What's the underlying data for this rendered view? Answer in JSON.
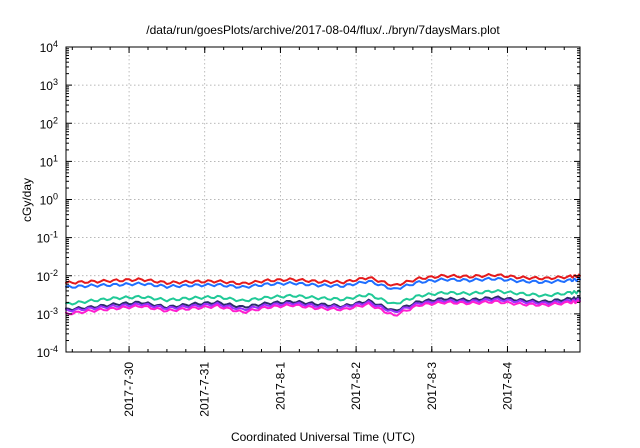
{
  "chart_data": {
    "type": "line",
    "title": "/data/run/goesPlots/archive/2017-08-04/flux/../bryn/7daysMars.plot",
    "xlabel": "Coordinated Universal Time (UTC)",
    "ylabel": "cGy/day",
    "yscale": "log",
    "ylim": [
      0.0001,
      10000
    ],
    "xlim": [
      "2017-07-29T04:00",
      "2017-08-04T23:00"
    ],
    "grid": true,
    "legend": "none",
    "x_ticks": [
      {
        "value": "2017-07-30",
        "label": "2017-7-30"
      },
      {
        "value": "2017-07-31",
        "label": "2017-7-31"
      },
      {
        "value": "2017-08-01",
        "label": "2017-8-1"
      },
      {
        "value": "2017-08-02",
        "label": "2017-8-2"
      },
      {
        "value": "2017-08-03",
        "label": "2017-8-3"
      },
      {
        "value": "2017-08-04",
        "label": "2017-8-4"
      }
    ],
    "y_ticks": [
      {
        "value": 0.0001,
        "base": "10",
        "exp": "-4"
      },
      {
        "value": 0.001,
        "base": "10",
        "exp": "-3"
      },
      {
        "value": 0.01,
        "base": "10",
        "exp": "-2"
      },
      {
        "value": 0.1,
        "base": "10",
        "exp": "-1"
      },
      {
        "value": 1,
        "base": "10",
        "exp": "0"
      },
      {
        "value": 10,
        "base": "10",
        "exp": "1"
      },
      {
        "value": 100,
        "base": "10",
        "exp": "2"
      },
      {
        "value": 1000,
        "base": "10",
        "exp": "3"
      },
      {
        "value": 10000,
        "base": "10",
        "exp": "4"
      }
    ],
    "x": [
      "2017-07-29T04:00",
      "2017-07-29T12:00",
      "2017-07-29T20:00",
      "2017-07-30T04:00",
      "2017-07-30T12:00",
      "2017-07-30T20:00",
      "2017-07-31T04:00",
      "2017-07-31T12:00",
      "2017-07-31T20:00",
      "2017-08-01T04:00",
      "2017-08-01T12:00",
      "2017-08-01T20:00",
      "2017-08-02T04:00",
      "2017-08-02T12:00",
      "2017-08-02T20:00",
      "2017-08-03T04:00",
      "2017-08-03T12:00",
      "2017-08-03T20:00",
      "2017-08-04T04:00",
      "2017-08-04T12:00",
      "2017-08-04T20:00",
      "2017-08-04T23:00"
    ],
    "series": [
      {
        "color": "#e41a1c",
        "values": [
          0.0065,
          0.007,
          0.0075,
          0.008,
          0.0065,
          0.007,
          0.0072,
          0.0062,
          0.0075,
          0.008,
          0.007,
          0.0068,
          0.009,
          0.0055,
          0.0085,
          0.01,
          0.0095,
          0.0105,
          0.009,
          0.0085,
          0.0095,
          0.01
        ]
      },
      {
        "color": "#1f6fff",
        "values": [
          0.005,
          0.0055,
          0.0058,
          0.0062,
          0.0052,
          0.0056,
          0.0058,
          0.005,
          0.006,
          0.0064,
          0.0056,
          0.0054,
          0.0072,
          0.0044,
          0.0068,
          0.008,
          0.0076,
          0.0084,
          0.0072,
          0.0068,
          0.0076,
          0.008
        ]
      },
      {
        "color": "#20c997",
        "values": [
          0.0018,
          0.0022,
          0.0026,
          0.0028,
          0.0023,
          0.0026,
          0.0028,
          0.0022,
          0.0027,
          0.003,
          0.0026,
          0.0024,
          0.0032,
          0.0018,
          0.003,
          0.0036,
          0.0034,
          0.004,
          0.0034,
          0.003,
          0.0036,
          0.0038
        ]
      },
      {
        "color": "#2b2b6b",
        "values": [
          0.0013,
          0.0015,
          0.0018,
          0.002,
          0.0015,
          0.0018,
          0.002,
          0.0015,
          0.0019,
          0.0021,
          0.0018,
          0.0016,
          0.0022,
          0.0012,
          0.0021,
          0.0025,
          0.0023,
          0.0027,
          0.0023,
          0.0021,
          0.0025,
          0.0026
        ]
      },
      {
        "color": "#9b30ff",
        "values": [
          0.0012,
          0.0014,
          0.0016,
          0.0018,
          0.0014,
          0.0016,
          0.0018,
          0.0013,
          0.0017,
          0.0019,
          0.0016,
          0.0015,
          0.002,
          0.0011,
          0.0019,
          0.0022,
          0.0021,
          0.0024,
          0.0021,
          0.0019,
          0.0022,
          0.0023
        ]
      },
      {
        "color": "#ff1fd0",
        "values": [
          0.001,
          0.0012,
          0.0014,
          0.0016,
          0.0012,
          0.0014,
          0.0016,
          0.0011,
          0.0015,
          0.0017,
          0.0014,
          0.0013,
          0.0018,
          0.0009,
          0.0017,
          0.002,
          0.0019,
          0.0021,
          0.0018,
          0.0017,
          0.002,
          0.0021
        ]
      }
    ]
  }
}
